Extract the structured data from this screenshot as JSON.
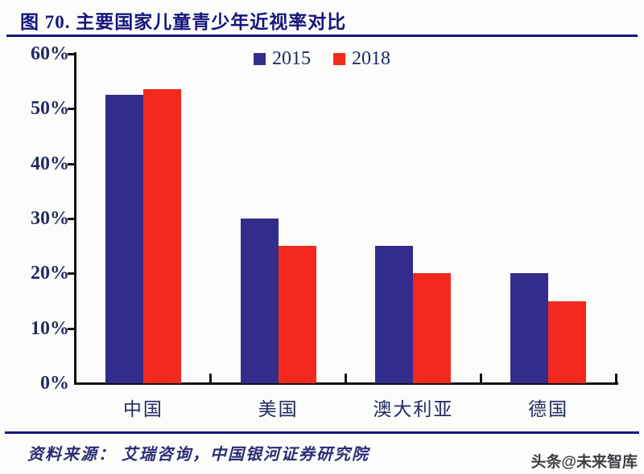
{
  "header": {
    "title": "图 70. 主要国家儿童青少年近视率对比"
  },
  "colors": {
    "accent_navy": "#15157e",
    "bar_2015": "#332c8d",
    "bar_2018": "#f3291e",
    "axis": "#111111",
    "tick_label": "#232a63",
    "source_text": "#2b2d75",
    "watermark": "#3f4046"
  },
  "chart_data": {
    "type": "bar",
    "title": "主要国家儿童青少年近视率对比",
    "figure_label": "图 70.",
    "categories": [
      "中国",
      "美国",
      "澳大利亚",
      "德国"
    ],
    "series": [
      {
        "name": "2015",
        "color": "#332c8d",
        "values": [
          52.5,
          30,
          25,
          20
        ]
      },
      {
        "name": "2018",
        "color": "#f3291e",
        "values": [
          53.6,
          25,
          20,
          15
        ]
      }
    ],
    "xlabel": "",
    "ylabel": "",
    "ylim": [
      0,
      60
    ],
    "ytick_step": 10,
    "ytick_suffix": "%",
    "grid": false,
    "legend_position": "top-center"
  },
  "footer": {
    "source_text": "资料来源： 艾瑞咨询，中国银河证券研究院",
    "watermark": "头条@未来智库"
  }
}
